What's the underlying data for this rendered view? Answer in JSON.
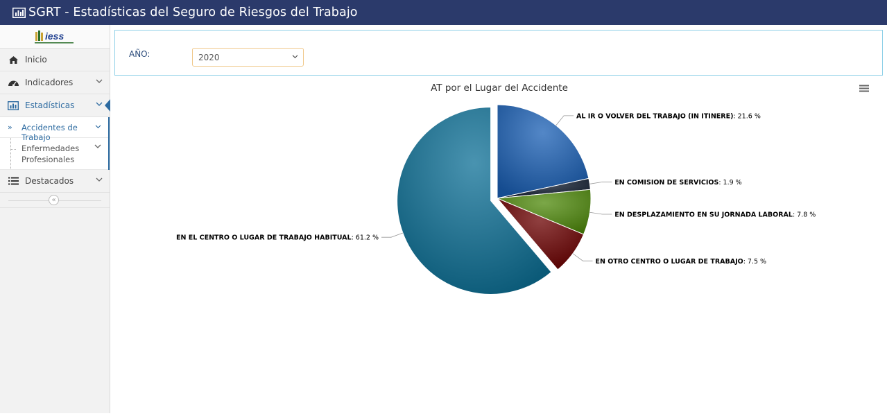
{
  "header": {
    "title": "SGRT - Estadísticas del Seguro de Riesgos del Trabajo",
    "icon": "bar-chart-icon",
    "background": "#2b3a6b"
  },
  "sidebar": {
    "logo": {
      "text": "iess",
      "tagline": "INSTITUTO ECUATORIANO DE SEGURIDAD SOCIAL"
    },
    "items": [
      {
        "label": "Inicio",
        "icon": "home-icon"
      },
      {
        "label": "Indicadores",
        "icon": "dashboard-icon"
      },
      {
        "label": "Estadísticas",
        "icon": "bar-chart-icon",
        "active": true
      },
      {
        "label": "Destacados",
        "icon": "list-icon"
      }
    ],
    "submenu": [
      {
        "label": "Accidentes de Trabajo",
        "current": true
      },
      {
        "label_line1": "Enfermedades",
        "label_line2": "Profesionales"
      }
    ],
    "accent": "#2c6aa0"
  },
  "filter": {
    "label": "AÑO:",
    "selected_year": "2020"
  },
  "chart_data": {
    "type": "pie",
    "title": "AT por el Lugar del Accidente",
    "unit": "%",
    "slices": [
      {
        "label": "AL IR O VOLVER DEL TRABAJO (IN ITINERE)",
        "value": 21.6,
        "display": "21.6 %",
        "color": "#1a5fb4"
      },
      {
        "label": "EN COMISION DE SERVICIOS",
        "value": 1.9,
        "display": "1.9 %",
        "color": "#0f1b2e"
      },
      {
        "label": "EN DESPLAZAMIENTO EN SU JORNADA LABORAL",
        "value": 7.8,
        "display": "7.8 %",
        "color": "#4f8a0b"
      },
      {
        "label": "EN OTRO CENTRO O LUGAR DE TRABAJO",
        "value": 7.5,
        "display": "7.5 %",
        "color": "#6b0000"
      },
      {
        "label": "EN EL CENTRO O LUGAR DE TRABAJO HABITUAL",
        "value": 61.2,
        "display": "61.2 %",
        "color": "#0c6f95",
        "sliced": true
      }
    ]
  }
}
